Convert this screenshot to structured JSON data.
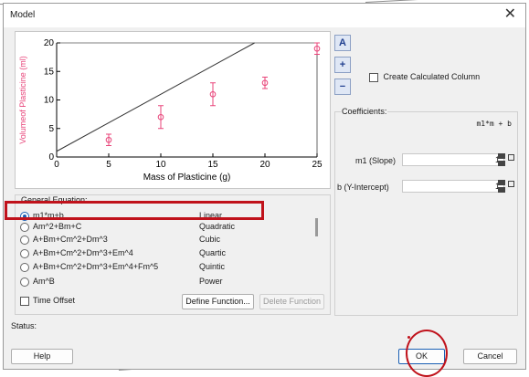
{
  "window": {
    "title": "Model",
    "close_icon": "close-icon"
  },
  "toolbar": {
    "autoscale_label": "A",
    "zoom_in_icon": "zoom-in-icon",
    "zoom_out_icon": "zoom-out-icon"
  },
  "calc_column": {
    "label": "Create Calculated Column",
    "checked": false
  },
  "coefficients": {
    "title": "Coefficients:",
    "equation": "m1*m + b",
    "items": [
      {
        "label": "m1 (Slope)",
        "value": "1"
      },
      {
        "label": "b (Y-Intercept)",
        "value": "1"
      }
    ]
  },
  "general_equation": {
    "title": "General Equation:",
    "options": [
      {
        "equation": "m1*m+b",
        "type": "Linear",
        "selected": true
      },
      {
        "equation": "Am^2+Bm+C",
        "type": "Quadratic",
        "selected": false
      },
      {
        "equation": "A+Bm+Cm^2+Dm^3",
        "type": "Cubic",
        "selected": false
      },
      {
        "equation": "A+Bm+Cm^2+Dm^3+Em^4",
        "type": "Quartic",
        "selected": false
      },
      {
        "equation": "A+Bm+Cm^2+Dm^3+Em^4+Fm^5",
        "type": "Quintic",
        "selected": false
      },
      {
        "equation": "Am^B",
        "type": "Power",
        "selected": false
      }
    ],
    "time_offset_label": "Time Offset",
    "define_function_label": "Define Function...",
    "delete_function_label": "Delete Function"
  },
  "status": {
    "label": "Status:"
  },
  "buttons": {
    "help": "Help",
    "ok": "OK",
    "cancel": "Cancel"
  },
  "chart_data": {
    "type": "scatter",
    "xlabel": "Mass of Plasticine (g)",
    "ylabel": "Volumeof Plasticine (ml)",
    "xlim": [
      0,
      25
    ],
    "ylim": [
      0,
      20
    ],
    "xticks": [
      "0",
      "5",
      "10",
      "15",
      "20",
      "25"
    ],
    "yticks": [
      "0",
      "5",
      "10",
      "15",
      "20"
    ],
    "series": [
      {
        "points": [
          {
            "x": 5,
            "y": 3,
            "err": 1
          },
          {
            "x": 10,
            "y": 7,
            "err": 2
          },
          {
            "x": 15,
            "y": 11,
            "err": 2
          },
          {
            "x": 20,
            "y": 13,
            "err": 1
          },
          {
            "x": 25,
            "y": 19,
            "err": 1
          }
        ],
        "color": "#e8457a"
      }
    ],
    "model_line": {
      "slope": 1,
      "intercept": 1,
      "color": "#333333"
    }
  },
  "colors": {
    "annotation": "#c0121b",
    "selected_radio": "#1a5fb4"
  }
}
